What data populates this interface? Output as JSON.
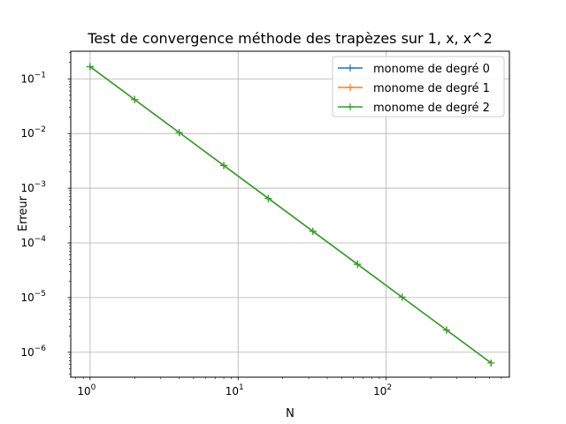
{
  "chart_data": {
    "type": "line",
    "title": "Test de convergence méthode des trapèzes sur 1, x, x^2",
    "xlabel": "N",
    "ylabel": "Erreur",
    "xscale": "log",
    "yscale": "log",
    "xlim": [
      0.74,
      680
    ],
    "ylim": [
      3.5e-07,
      0.32
    ],
    "grid": true,
    "legend_position": "top-right",
    "x": [
      1,
      2,
      4,
      8,
      16,
      32,
      64,
      128,
      256,
      512
    ],
    "series": [
      {
        "name": "monome de degré 0",
        "color": "#1f77b4",
        "marker": "+",
        "values": [
          0.1667,
          0.04167,
          0.01042,
          0.002604,
          0.000651,
          0.0001628,
          4.07e-05,
          1.017e-05,
          2.543e-06,
          6.36e-07
        ]
      },
      {
        "name": "monome de degré 1",
        "color": "#ff7f0e",
        "marker": "+",
        "values": [
          0.1667,
          0.04167,
          0.01042,
          0.002604,
          0.000651,
          0.0001628,
          4.07e-05,
          1.017e-05,
          2.543e-06,
          6.36e-07
        ]
      },
      {
        "name": "monome de degré 2",
        "color": "#2ca02c",
        "marker": "+",
        "values": [
          0.1667,
          0.04167,
          0.01042,
          0.002604,
          0.000651,
          0.0001628,
          4.07e-05,
          1.017e-05,
          2.543e-06,
          6.36e-07
        ]
      }
    ],
    "x_ticks": [
      {
        "value": 1,
        "base": "10",
        "exp": "0"
      },
      {
        "value": 10,
        "base": "10",
        "exp": "1"
      },
      {
        "value": 100,
        "base": "10",
        "exp": "2"
      }
    ],
    "y_ticks": [
      {
        "value": 0.1,
        "base": "10",
        "exp": "−1"
      },
      {
        "value": 0.01,
        "base": "10",
        "exp": "−2"
      },
      {
        "value": 0.001,
        "base": "10",
        "exp": "−3"
      },
      {
        "value": 0.0001,
        "base": "10",
        "exp": "−4"
      },
      {
        "value": 1e-05,
        "base": "10",
        "exp": "−5"
      },
      {
        "value": 1e-06,
        "base": "10",
        "exp": "−6"
      }
    ]
  }
}
